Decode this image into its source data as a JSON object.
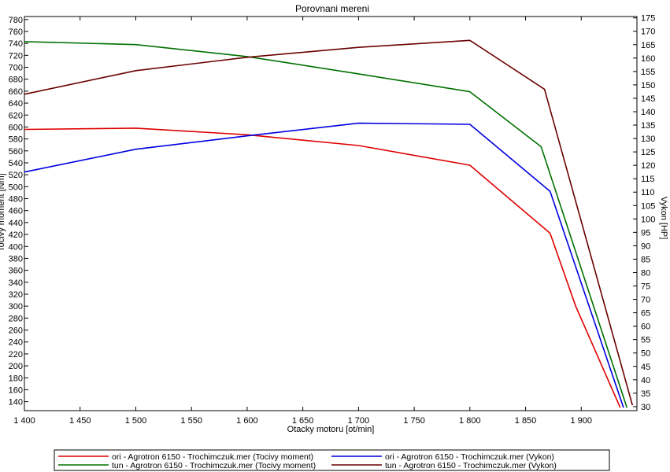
{
  "chart_data": {
    "type": "line",
    "title": "Porovnani mereni",
    "xlabel": "Otacky motoru [ot/min]",
    "ylabel_left": "Tocivy moment [Nm]",
    "ylabel_right": "Vykon [HP]",
    "xlim": [
      1400,
      1950
    ],
    "ylim_left": [
      125,
      785
    ],
    "ylim_right": [
      28.5,
      175.5
    ],
    "x_ticks": [
      1400,
      1450,
      1500,
      1550,
      1600,
      1650,
      1700,
      1750,
      1800,
      1850,
      1900
    ],
    "x_tick_labels": [
      "1 400",
      "1 450",
      "1 500",
      "1 550",
      "1 600",
      "1 650",
      "1 700",
      "1 750",
      "1 800",
      "1 850",
      "1 900"
    ],
    "y_left_ticks": [
      140,
      160,
      180,
      200,
      220,
      240,
      260,
      280,
      300,
      320,
      340,
      360,
      380,
      400,
      420,
      440,
      460,
      480,
      500,
      520,
      540,
      560,
      580,
      600,
      620,
      640,
      660,
      680,
      700,
      720,
      740,
      760,
      780
    ],
    "y_right_ticks": [
      30,
      35,
      40,
      45,
      50,
      55,
      60,
      65,
      70,
      75,
      80,
      85,
      90,
      95,
      100,
      105,
      110,
      115,
      120,
      125,
      130,
      135,
      140,
      145,
      150,
      155,
      160,
      165,
      170,
      175
    ],
    "grid": false,
    "series": [
      {
        "name": "ori - Agrotron 6150 - Trochimczuk.mer  (Tocivy moment)",
        "axis": "left",
        "color": "#e00000",
        "x": [
          1400,
          1500,
          1600,
          1700,
          1800,
          1872,
          1895,
          1935
        ],
        "y": [
          596,
          598,
          587,
          569,
          536,
          422,
          300,
          130
        ]
      },
      {
        "name": "ori - Agrotron 6150 - Trochimczuk.mer  (Vykon)",
        "axis": "right",
        "color": "#0000e0",
        "x": [
          1400,
          1500,
          1600,
          1700,
          1800,
          1872,
          1938
        ],
        "y": [
          117.5,
          126,
          131,
          135.7,
          135.3,
          110.3,
          29.6
        ]
      },
      {
        "name": "tun - Agrotron 6150 - Trochimczuk.mer  (Tocivy moment)",
        "axis": "left",
        "color": "#007000",
        "x": [
          1400,
          1500,
          1600,
          1700,
          1800,
          1864,
          1941
        ],
        "y": [
          743,
          738,
          718,
          689,
          659,
          567,
          130
        ]
      },
      {
        "name": "tun - Agrotron 6150 - Trochimczuk.mer  (Vykon)",
        "axis": "right",
        "color": "#6a0000",
        "x": [
          1400,
          1500,
          1600,
          1700,
          1800,
          1867,
          1946
        ],
        "y": [
          146.5,
          155.3,
          160.3,
          164,
          166.6,
          148.4,
          30.5
        ]
      }
    ],
    "legend_position": "bottom"
  }
}
